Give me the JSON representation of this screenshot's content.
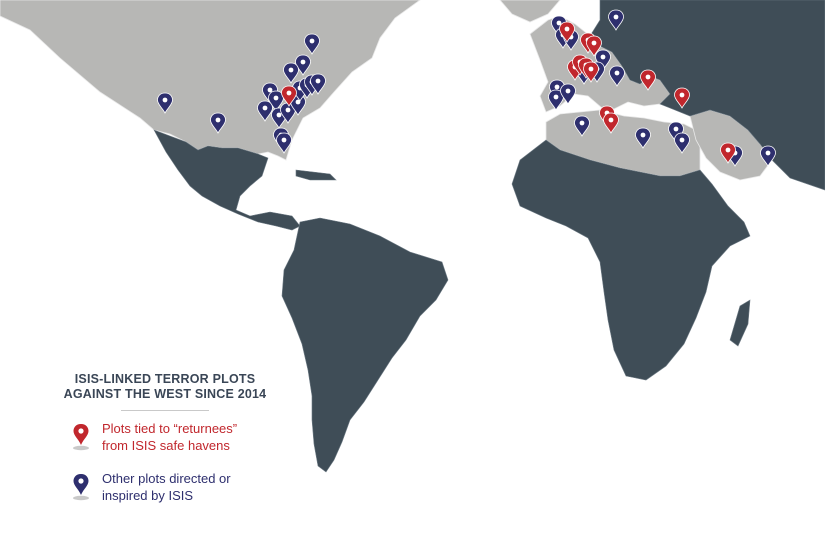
{
  "legend": {
    "title_line1": "ISIS-LINKED TERROR PLOTS",
    "title_line2": "AGAINST THE WEST SINCE 2014",
    "items": [
      {
        "label": "Plots tied to “returnees”\nfrom ISIS safe havens",
        "color": "#c1272d",
        "marker": "map-pin-icon"
      },
      {
        "label": "Other plots directed or\ninspired by ISIS",
        "color": "#2e2f6e",
        "marker": "map-pin-icon"
      }
    ]
  },
  "colors": {
    "land_dark": "#3f4d57",
    "land_light": "#b7b7b5",
    "border": "#e6e6e6",
    "returnee_pin": "#c1272d",
    "other_pin": "#2e2f6e",
    "title_text": "#3a4656"
  }
}
